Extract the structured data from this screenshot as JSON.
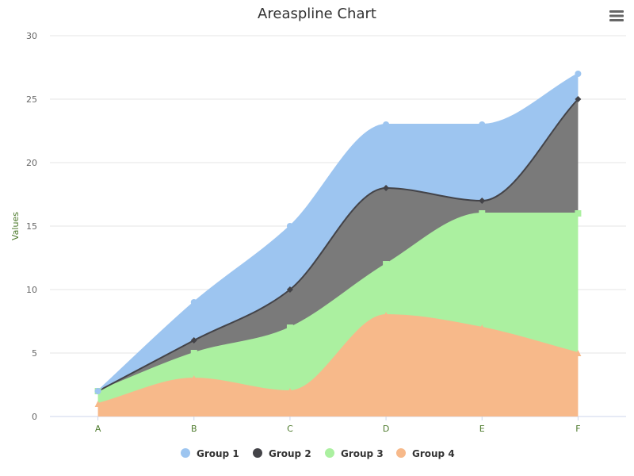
{
  "chart_data": {
    "type": "area",
    "title": "Areaspline Chart",
    "subtitle": "",
    "xlabel": "",
    "ylabel": "Values",
    "categories": [
      "A",
      "B",
      "C",
      "D",
      "E",
      "F"
    ],
    "ylim": [
      0,
      30
    ],
    "yticks": [
      0,
      5,
      10,
      15,
      20,
      25,
      30
    ],
    "stacked": true,
    "grid": true,
    "legend": "bottom-center",
    "series": [
      {
        "name": "Group 1",
        "color": "#9dc5f0",
        "marker": "circle",
        "values": [
          0,
          3,
          5,
          5,
          6,
          2
        ]
      },
      {
        "name": "Group 2",
        "color": "#7a7a7a",
        "line_color": "#434348",
        "marker": "diamond",
        "values": [
          0,
          1,
          3,
          6,
          1,
          9
        ]
      },
      {
        "name": "Group 3",
        "color": "#abf0a0",
        "marker": "square",
        "values": [
          1,
          2,
          5,
          4,
          9,
          11
        ]
      },
      {
        "name": "Group 4",
        "color": "#f7b98a",
        "marker": "triangle",
        "values": [
          1,
          3,
          2,
          8,
          7,
          5
        ]
      }
    ],
    "legend_colors": [
      "#9dc5f0",
      "#434348",
      "#abf0a0",
      "#f7b98a"
    ]
  },
  "toolbar": {
    "menu_icon": "hamburger-menu-icon"
  }
}
